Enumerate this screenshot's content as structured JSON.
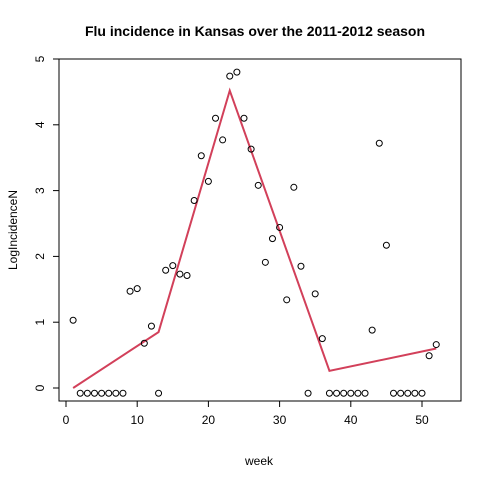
{
  "chart_data": {
    "type": "scatter",
    "title": "Flu incidence in Kansas over the 2011-2012 season",
    "xlabel": "week",
    "ylabel": "LogIncidenceN",
    "xlim": [
      0,
      53
    ],
    "ylim": [
      -0.1,
      5.0
    ],
    "x_ticks": [
      0,
      10,
      20,
      30,
      40,
      50
    ],
    "y_ticks": [
      0,
      1,
      2,
      3,
      4,
      5
    ],
    "grid": false,
    "legend": "none",
    "series": [
      {
        "kind": "points",
        "marker": "open-circle",
        "color": "#000000",
        "x": [
          1,
          2,
          3,
          4,
          5,
          6,
          7,
          8,
          9,
          10,
          11,
          12,
          13,
          14,
          15,
          16,
          17,
          18,
          19,
          20,
          21,
          22,
          23,
          24,
          25,
          26,
          27,
          28,
          29,
          30,
          31,
          32,
          33,
          34,
          35,
          36,
          37,
          38,
          39,
          40,
          41,
          42,
          43,
          44,
          45,
          46,
          47,
          48,
          49,
          50,
          51,
          52
        ],
        "y": [
          1.03,
          -0.08,
          -0.08,
          -0.08,
          -0.08,
          -0.08,
          -0.08,
          -0.08,
          1.47,
          1.51,
          0.68,
          0.94,
          -0.08,
          1.79,
          1.86,
          1.73,
          1.71,
          2.85,
          3.53,
          3.14,
          4.1,
          3.77,
          4.74,
          4.8,
          4.1,
          3.63,
          3.08,
          1.91,
          2.27,
          2.44,
          1.34,
          3.05,
          1.85,
          -0.08,
          1.43,
          0.75,
          -0.08,
          -0.08,
          -0.08,
          -0.08,
          -0.08,
          -0.08,
          0.88,
          3.72,
          2.17,
          -0.08,
          -0.08,
          -0.08,
          -0.08,
          -0.08,
          0.49,
          0.66
        ]
      },
      {
        "kind": "line",
        "color": "#d2405a",
        "x": [
          1,
          13,
          23,
          37,
          52
        ],
        "y": [
          0.0,
          0.85,
          4.52,
          0.26,
          0.6
        ]
      }
    ]
  }
}
